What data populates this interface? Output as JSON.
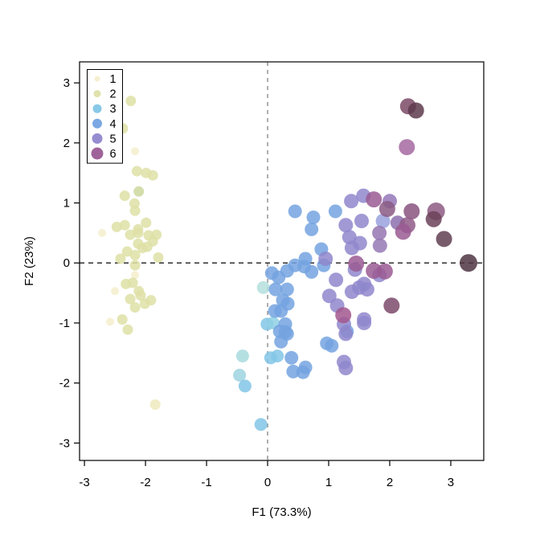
{
  "figure": {
    "background": "#ffffff"
  },
  "chart_data": {
    "type": "scatter",
    "title": "",
    "xlabel": "F1 (73.3%)",
    "ylabel": "F2 (23%)",
    "xlim": [
      -3.08,
      3.54
    ],
    "ylim": [
      -3.29,
      3.35
    ],
    "x_ticks": [
      -3,
      -2,
      -1,
      0,
      1,
      2,
      3
    ],
    "y_ticks": [
      -3,
      -2,
      -1,
      0,
      1,
      2,
      3
    ],
    "grid": false,
    "reference_lines": {
      "vertical_x": 0,
      "horizontal_y": 0,
      "style": "dashed",
      "vertical_color": "#8c8c8c",
      "horizontal_color": "#2f2f2f"
    },
    "legend": {
      "position": "top-left",
      "items": [
        {
          "label": "1",
          "color": "#f4eecd",
          "swatch_radius": 3.5
        },
        {
          "label": "2",
          "color": "#dee0a6",
          "swatch_radius": 4.5
        },
        {
          "label": "3",
          "color": "#82c6e6",
          "swatch_radius": 5.5
        },
        {
          "label": "4",
          "color": "#74a3e0",
          "swatch_radius": 6.0
        },
        {
          "label": "5",
          "color": "#8f87cd",
          "swatch_radius": 6.5
        },
        {
          "label": "6",
          "color": "#9a5b93",
          "swatch_radius": 7.5
        }
      ]
    },
    "series": [
      {
        "name": "1",
        "color": "#f4eecd",
        "radius": 5,
        "points": [
          [
            -2.17,
            1.86
          ],
          [
            -2.71,
            0.5
          ],
          [
            -2.17,
            -0.2
          ],
          [
            -2.5,
            -0.47
          ],
          [
            -2.58,
            -0.98
          ]
        ]
      },
      {
        "name": "2",
        "color": "#dee0a6",
        "radius": 6.5,
        "points": [
          [
            -2.24,
            2.7
          ],
          [
            -2.37,
            2.24
          ],
          [
            -2.14,
            1.53
          ],
          [
            -1.99,
            1.5
          ],
          [
            -1.88,
            1.46
          ],
          [
            -2.34,
            1.12
          ],
          [
            -2.11,
            1.19,
            "#cdd89e"
          ],
          [
            -2.18,
            0.99
          ],
          [
            -2.17,
            0.87
          ],
          [
            -2.47,
            0.6
          ],
          [
            -2.34,
            0.63
          ],
          [
            -2.12,
            0.56
          ],
          [
            -1.99,
            0.67
          ],
          [
            -2.25,
            0.47
          ],
          [
            -2.12,
            0.5
          ],
          [
            -1.95,
            0.46
          ],
          [
            -1.82,
            0.47
          ],
          [
            -1.88,
            0.36
          ],
          [
            -2.12,
            0.32
          ],
          [
            -2.05,
            0.25
          ],
          [
            -1.97,
            0.27
          ],
          [
            -2.3,
            0.19
          ],
          [
            -2.17,
            0.13
          ],
          [
            -2.41,
            0.07
          ],
          [
            -1.79,
            0.09
          ],
          [
            -2.17,
            -0.04
          ],
          [
            -2.32,
            -0.35
          ],
          [
            -2.21,
            -0.33
          ],
          [
            -2.11,
            -0.47
          ],
          [
            -2.25,
            -0.6
          ],
          [
            -2.08,
            -0.54
          ],
          [
            -2.17,
            -0.74
          ],
          [
            -2.01,
            -0.68
          ],
          [
            -1.91,
            -0.62
          ],
          [
            -2.38,
            -0.94
          ],
          [
            -2.29,
            -1.11
          ],
          [
            -1.84,
            -2.36,
            "#eeeabd"
          ]
        ]
      },
      {
        "name": "3",
        "color": "#82c6e6",
        "radius": 8,
        "points": [
          [
            -0.01,
            -1.02
          ],
          [
            0.09,
            -1.0,
            "#8ed0e4"
          ],
          [
            -0.41,
            -1.55,
            "#a8dbdd"
          ],
          [
            0.05,
            -1.58
          ],
          [
            0.16,
            -1.55
          ],
          [
            -0.46,
            -1.87,
            "#9ed4e0"
          ],
          [
            -0.37,
            -2.05
          ],
          [
            -0.11,
            -2.69
          ],
          [
            -0.07,
            -0.41,
            "#b4dfdd"
          ]
        ]
      },
      {
        "name": "4",
        "color": "#74a3e0",
        "radius": 8.5,
        "points": [
          [
            0.29,
            -1.02
          ],
          [
            0.29,
            -1.15
          ],
          [
            0.22,
            -1.31
          ],
          [
            0.39,
            -1.58
          ],
          [
            0.42,
            -1.81
          ],
          [
            0.58,
            -1.82
          ],
          [
            1.05,
            -1.38
          ],
          [
            0.07,
            -0.17
          ],
          [
            0.18,
            -0.24
          ],
          [
            0.13,
            -0.44
          ],
          [
            0.32,
            -0.44
          ],
          [
            0.25,
            -0.62
          ],
          [
            0.33,
            -0.68
          ],
          [
            0.12,
            -0.8
          ],
          [
            0.22,
            -0.8
          ],
          [
            0.2,
            -1.14
          ],
          [
            0.32,
            -1.18
          ],
          [
            0.62,
            0.07
          ],
          [
            0.6,
            -0.06
          ],
          [
            0.45,
            -0.04
          ],
          [
            0.32,
            -0.13
          ],
          [
            0.45,
            0.86
          ],
          [
            1.11,
            0.86
          ],
          [
            0.75,
            0.76
          ],
          [
            0.72,
            0.56
          ],
          [
            0.88,
            0.23
          ],
          [
            0.92,
            -0.04
          ],
          [
            0.97,
            -1.34
          ],
          [
            0.62,
            -1.74
          ],
          [
            0.72,
            -0.15
          ],
          [
            1.3,
            -1.14
          ]
        ]
      },
      {
        "name": "5",
        "color": "#8f87cd",
        "radius": 9,
        "points": [
          [
            1.25,
            -1.02
          ],
          [
            1.28,
            -1.18
          ],
          [
            1.58,
            -1.0
          ],
          [
            1.25,
            -1.65
          ],
          [
            1.28,
            -1.75
          ],
          [
            1.12,
            -0.28
          ],
          [
            1.43,
            -0.11
          ],
          [
            1.83,
            -0.2
          ],
          [
            1.5,
            -0.41
          ],
          [
            1.63,
            -0.44
          ],
          [
            1.38,
            -0.48
          ],
          [
            1.01,
            -0.55
          ],
          [
            1.14,
            -0.71
          ],
          [
            1.58,
            -0.94
          ],
          [
            1.28,
            0.63
          ],
          [
            1.54,
            0.7
          ],
          [
            1.89,
            0.7,
            "#99a2de"
          ],
          [
            2.13,
            0.67,
            "#8c6fae"
          ],
          [
            1.37,
            1.03
          ],
          [
            1.57,
            1.12
          ],
          [
            2.0,
            1.03,
            "#9478b8"
          ],
          [
            1.34,
            0.43
          ],
          [
            1.51,
            0.33
          ],
          [
            1.38,
            0.25
          ],
          [
            1.84,
            0.29,
            "#9579b5"
          ],
          [
            1.83,
            0.5,
            "#9577b2"
          ],
          [
            1.58,
            -0.35
          ],
          [
            0.95,
            0.07
          ]
        ]
      },
      {
        "name": "6",
        "color": "#9a5b93",
        "radius": 10,
        "points": [
          [
            2.3,
            2.61,
            "#7b4a66"
          ],
          [
            2.43,
            2.54,
            "#5e3a4e"
          ],
          [
            2.28,
            1.93,
            "#a468a0"
          ],
          [
            1.74,
            1.06
          ],
          [
            1.96,
            0.9,
            "#8a5a84"
          ],
          [
            2.36,
            0.86,
            "#8a5480"
          ],
          [
            2.29,
            0.63,
            "#905a88"
          ],
          [
            2.22,
            0.52
          ],
          [
            2.76,
            0.86,
            "#8d5a82",
            11
          ],
          [
            2.72,
            0.73,
            "#6b4258"
          ],
          [
            2.89,
            0.4,
            "#614052"
          ],
          [
            3.29,
            0.0,
            "#4f3542",
            11
          ],
          [
            1.45,
            -0.01
          ],
          [
            1.74,
            -0.13
          ],
          [
            1.92,
            -0.14
          ],
          [
            2.03,
            -0.71,
            "#7d4a6b"
          ],
          [
            1.24,
            -0.87,
            "#a2578e"
          ]
        ]
      }
    ]
  }
}
